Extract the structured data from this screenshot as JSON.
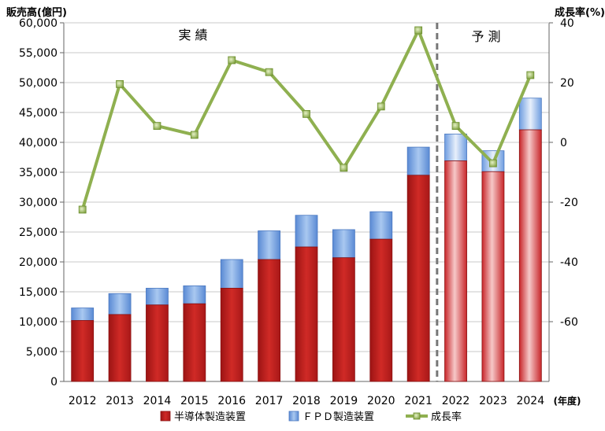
{
  "chart_data": {
    "type": "bar",
    "left_axis_title": "販売高(億円)",
    "right_axis_title": "成長率(%)",
    "x_unit_label": "(年度)",
    "region_labels": {
      "actual": "実 績",
      "forecast": "予 測"
    },
    "categories": [
      "2012",
      "2013",
      "2014",
      "2015",
      "2016",
      "2017",
      "2018",
      "2019",
      "2020",
      "2021",
      "2022",
      "2023",
      "2024"
    ],
    "forecast_start_index": 10,
    "series": [
      {
        "name": "半導体製造装置",
        "type": "bar",
        "axis": "left",
        "color": "#c0201e",
        "values": [
          10200,
          11200,
          12800,
          13000,
          15600,
          20400,
          22500,
          20700,
          23800,
          34500,
          36900,
          35100,
          42100
        ]
      },
      {
        "name": "ＦＰＤ製造装置",
        "type": "bar",
        "axis": "left",
        "color": "#6a9ee0",
        "values": [
          2100,
          3500,
          2800,
          3000,
          4800,
          4800,
          5300,
          4700,
          4600,
          4700,
          4500,
          3500,
          5300
        ]
      },
      {
        "name": "成長率",
        "type": "line",
        "axis": "right",
        "color": "#8fb050",
        "values": [
          -22.5,
          19.5,
          5.5,
          2.5,
          27.5,
          23.5,
          9.5,
          -8.5,
          12,
          37.5,
          5.5,
          -7,
          22.5
        ]
      }
    ],
    "y_left": {
      "min": 0,
      "max": 60000,
      "ticks": [
        "0",
        "5,000",
        "10,000",
        "15,000",
        "20,000",
        "25,000",
        "30,000",
        "35,000",
        "40,000",
        "45,000",
        "50,000",
        "55,000",
        "60,000"
      ]
    },
    "y_right": {
      "min": -80,
      "max": 40,
      "ticks": [
        "40",
        "20",
        "0",
        "-20",
        "-40",
        "-60"
      ]
    },
    "grid": true,
    "legend_position": "bottom"
  }
}
